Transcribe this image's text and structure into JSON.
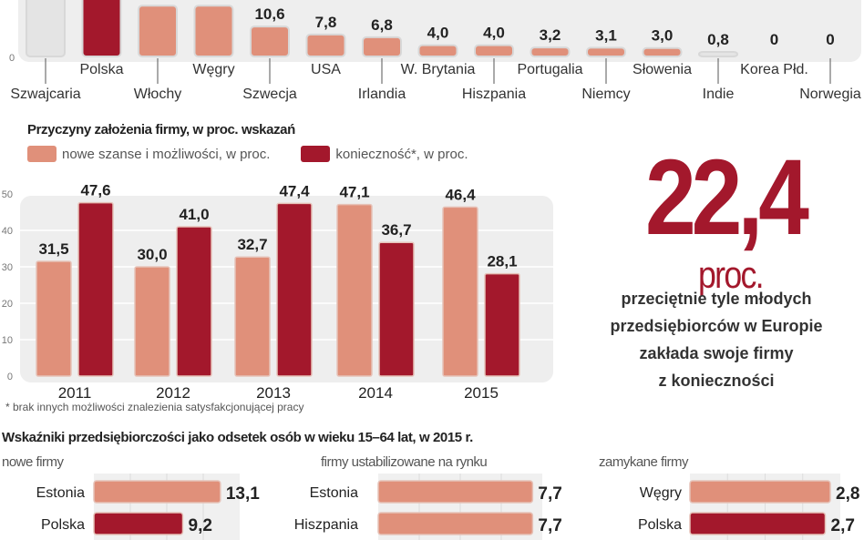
{
  "colors": {
    "light": "#e0907a",
    "dark": "#a3182c",
    "plot_bg": "#eeeeee"
  },
  "chart_data": [
    {
      "type": "bar",
      "categories": [
        "Szwajcaria",
        "Polska",
        "Włochy",
        "Węgry",
        "Szwecja",
        "USA",
        "Irlandia",
        "W. Brytania",
        "Hiszpania",
        "Portugalia",
        "Niemcy",
        "Słowenia",
        "Indie",
        "Korea Płd.",
        "Norwegia"
      ],
      "values": [
        null,
        null,
        18,
        18,
        10.6,
        7.8,
        6.8,
        4.0,
        4.0,
        3.2,
        3.1,
        3.0,
        0.8,
        0,
        0
      ],
      "labels": [
        "",
        "",
        "",
        "",
        "10,6",
        "7,8",
        "6,8",
        "4,0",
        "4,0",
        "3,2",
        "3,1",
        "3,0",
        "0,8",
        "0",
        "0"
      ],
      "highlight": "Polska",
      "yticks": [
        "0"
      ],
      "grid": false
    },
    {
      "type": "bar",
      "title": "Przyczyny założenia firmy, w proc. wskazań",
      "categories": [
        "2011",
        "2012",
        "2013",
        "2014",
        "2015"
      ],
      "series": [
        {
          "name": "nowe szanse i możliwości, w proc.",
          "values": [
            31.5,
            30.0,
            32.7,
            47.1,
            46.4
          ],
          "labels": [
            "31,5",
            "30,0",
            "32,7",
            "47,1",
            "46,4"
          ]
        },
        {
          "name": "konieczność*,  w proc.",
          "values": [
            47.6,
            41.0,
            47.4,
            36.7,
            28.1
          ],
          "labels": [
            "47,6",
            "41,0",
            "47,4",
            "36,7",
            "28,1"
          ]
        }
      ],
      "ylim": [
        0,
        50
      ],
      "yticks": [
        "0",
        "10",
        "20",
        "30",
        "40",
        "50"
      ],
      "grid": true,
      "legend": "top-left",
      "footnote": "* brak innych możliwości znalezienia satysfakcjonującej pracy"
    },
    {
      "type": "bar",
      "orientation": "horizontal",
      "title": "Wskaźniki przedsiębiorczości jako odsetek osób w wieku 15–64 lat, w 2015 r.",
      "panels": [
        {
          "subtitle": "nowe firmy",
          "categories": [
            "Estonia",
            "Polska"
          ],
          "values": [
            13.1,
            9.2
          ],
          "labels": [
            "13,1",
            "9,2"
          ]
        },
        {
          "subtitle": "firmy ustabilizowane na rynku",
          "categories": [
            "Estonia",
            "Hiszpania"
          ],
          "values": [
            7.7,
            7.7
          ],
          "labels": [
            "7,7",
            "7,7"
          ]
        },
        {
          "subtitle": "zamykane firmy",
          "categories": [
            "Węgry",
            "Polska"
          ],
          "values": [
            2.8,
            2.7
          ],
          "labels": [
            "2,8",
            "2,7"
          ]
        }
      ]
    }
  ],
  "callout": {
    "number": "22,4",
    "unit": "proc.",
    "lines": [
      "przeciętnie tyle młodych",
      "przedsiębiorców w Europie",
      "zakłada swoje firmy",
      "z konieczności"
    ]
  }
}
